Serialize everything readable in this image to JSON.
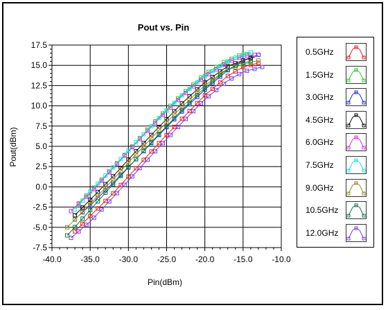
{
  "chart_data": {
    "type": "line",
    "title": "Pout vs. Pin",
    "xlabel": "Pin(dBm)",
    "ylabel": "Pout(dBm)",
    "xlim": [
      -40,
      -10
    ],
    "ylim": [
      -7.5,
      17.5
    ],
    "x_ticks": [
      "-40.0",
      "-35.0",
      "-30.0",
      "-25.0",
      "-20.0",
      "-15.0",
      "-10.0"
    ],
    "y_ticks": [
      "-7.5",
      "-5.0",
      "-2.5",
      "0.0",
      "2.5",
      "5.0",
      "7.5",
      "10.0",
      "12.5",
      "15.0",
      "17.5"
    ],
    "grid": true,
    "legend_position": "right",
    "series": [
      {
        "name": "0.5GHz",
        "color": "#e8202a",
        "x": [
          -37.0,
          -35.0,
          -32.0,
          -29.0,
          -26.0,
          -23.0,
          -20.0,
          -17.0,
          -15.0,
          -13.0
        ],
        "y": [
          -5.5,
          -3.6,
          -0.8,
          2.3,
          5.4,
          8.4,
          11.3,
          13.7,
          14.8,
          15.3
        ]
      },
      {
        "name": "1.5GHz",
        "color": "#2fcc2f",
        "x": [
          -37.5,
          -35.0,
          -32.0,
          -29.0,
          -26.0,
          -23.0,
          -20.0,
          -17.5,
          -15.5,
          -14.0
        ],
        "y": [
          -3.0,
          -0.6,
          2.4,
          5.5,
          8.6,
          11.4,
          13.9,
          15.4,
          16.2,
          16.5
        ]
      },
      {
        "name": "3.0GHz",
        "color": "#2233dd",
        "x": [
          -37.0,
          -35.0,
          -32.0,
          -29.0,
          -26.0,
          -23.0,
          -20.0,
          -17.0,
          -15.0,
          -13.0
        ],
        "y": [
          -4.0,
          -2.3,
          0.5,
          3.4,
          6.4,
          9.3,
          12.0,
          14.4,
          15.6,
          16.3
        ]
      },
      {
        "name": "4.5GHz",
        "color": "#111111",
        "x": [
          -37.0,
          -35.0,
          -32.0,
          -29.0,
          -26.0,
          -23.0,
          -20.0,
          -17.0,
          -15.0,
          -13.5
        ],
        "y": [
          -3.5,
          -1.6,
          1.3,
          4.4,
          7.4,
          10.3,
          12.9,
          14.9,
          15.6,
          16.0
        ]
      },
      {
        "name": "6.0GHz",
        "color": "#e030e0",
        "x": [
          -37.5,
          -35.0,
          -32.0,
          -29.0,
          -26.0,
          -23.0,
          -20.0,
          -17.0,
          -15.0,
          -13.5
        ],
        "y": [
          -3.0,
          -0.8,
          2.3,
          5.4,
          8.4,
          11.2,
          13.6,
          15.4,
          16.1,
          16.3
        ]
      },
      {
        "name": "7.5GHz",
        "color": "#22dddd",
        "x": [
          -37.0,
          -35.0,
          -32.0,
          -29.0,
          -26.0,
          -23.0,
          -20.0,
          -17.0,
          -15.5,
          -14.0
        ],
        "y": [
          -2.8,
          -0.6,
          2.4,
          5.5,
          8.5,
          11.3,
          13.7,
          15.5,
          16.2,
          16.6
        ]
      },
      {
        "name": "9.0GHz",
        "color": "#9a8a20",
        "x": [
          -38.0,
          -35.5,
          -32.5,
          -29.5,
          -26.5,
          -23.5,
          -20.5,
          -17.5,
          -15.0,
          -13.0
        ],
        "y": [
          -5.0,
          -2.6,
          0.4,
          3.5,
          6.5,
          9.4,
          12.1,
          14.3,
          15.1,
          15.6
        ]
      },
      {
        "name": "10.5GHz",
        "color": "#107a40",
        "x": [
          -38.0,
          -35.5,
          -32.5,
          -29.5,
          -26.5,
          -23.5,
          -20.5,
          -17.5,
          -15.5,
          -14.0
        ],
        "y": [
          -6.0,
          -3.4,
          -0.2,
          2.9,
          6.0,
          9.0,
          11.8,
          14.2,
          15.2,
          15.5
        ]
      },
      {
        "name": "12.0GHz",
        "color": "#8040e0",
        "x": [
          -37.5,
          -35.0,
          -32.0,
          -29.0,
          -26.0,
          -23.0,
          -20.0,
          -17.0,
          -15.0,
          -12.5
        ],
        "y": [
          -6.3,
          -4.3,
          -1.3,
          1.8,
          4.9,
          7.9,
          10.8,
          13.1,
          14.2,
          14.8
        ]
      }
    ]
  }
}
